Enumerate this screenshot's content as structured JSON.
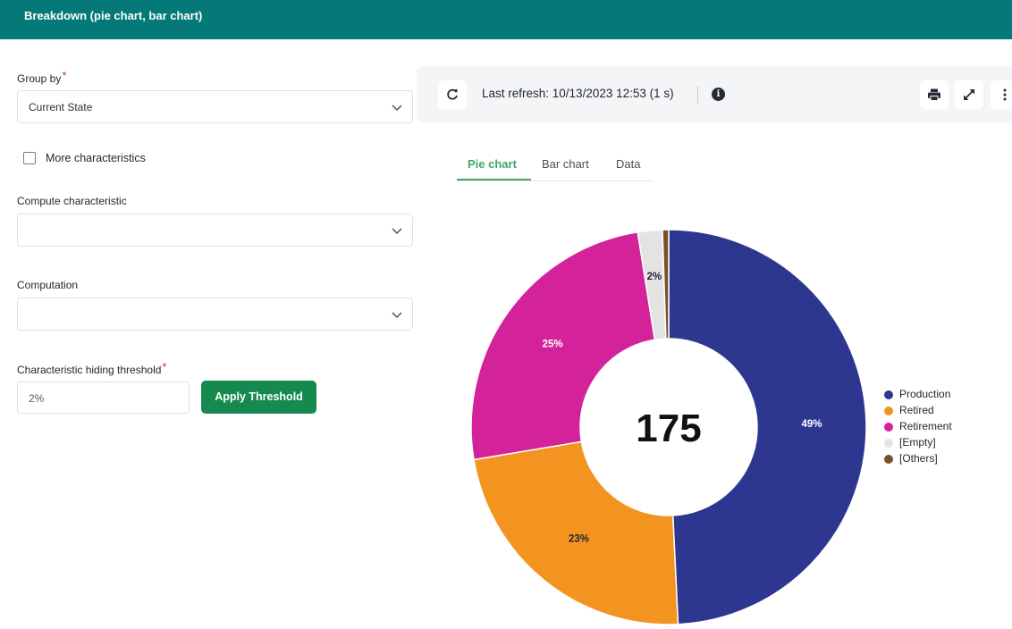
{
  "header": {
    "title": "Breakdown (pie chart, bar chart)"
  },
  "form": {
    "group_by": {
      "label": "Group by",
      "required_mark": "*",
      "value": "Current State"
    },
    "more_characteristics": {
      "label": "More characteristics",
      "checked": false
    },
    "compute_characteristic": {
      "label": "Compute characteristic",
      "value": ""
    },
    "computation": {
      "label": "Computation",
      "value": ""
    },
    "hiding_threshold": {
      "label": "Characteristic hiding threshold",
      "required_mark": "*",
      "value": "2%"
    },
    "apply_button": "Apply Threshold"
  },
  "toolbar": {
    "refresh_text": "Last refresh: 10/13/2023 12:53 (1 s)",
    "info_glyph": "i",
    "icons": [
      "refresh-icon",
      "info-icon",
      "print-icon",
      "expand-icon",
      "more-vertical-icon"
    ]
  },
  "tabs": [
    {
      "label": "Pie chart",
      "active": true
    },
    {
      "label": "Bar chart",
      "active": false
    },
    {
      "label": "Data",
      "active": false
    }
  ],
  "chart_data": {
    "type": "pie",
    "donut": true,
    "center_label": "175",
    "legend_position": "right",
    "slices": [
      {
        "label": "Production",
        "value": 49,
        "display": "49%",
        "color": "#2e3790",
        "label_color": "#ffffff"
      },
      {
        "label": "Retired",
        "value": 23,
        "display": "23%",
        "color": "#f39420",
        "label_color": "#1f2430"
      },
      {
        "label": "Retirement",
        "value": 25,
        "display": "25%",
        "color": "#d4239a",
        "label_color": "#ffffff"
      },
      {
        "label": "[Empty]",
        "value": 2,
        "display": "2%",
        "color": "#e3e3e3",
        "label_color": "#1f2430"
      },
      {
        "label": "[Others]",
        "value": 0.5,
        "display": "",
        "color": "#7b4e2a",
        "label_color": "#1f2430"
      }
    ]
  }
}
